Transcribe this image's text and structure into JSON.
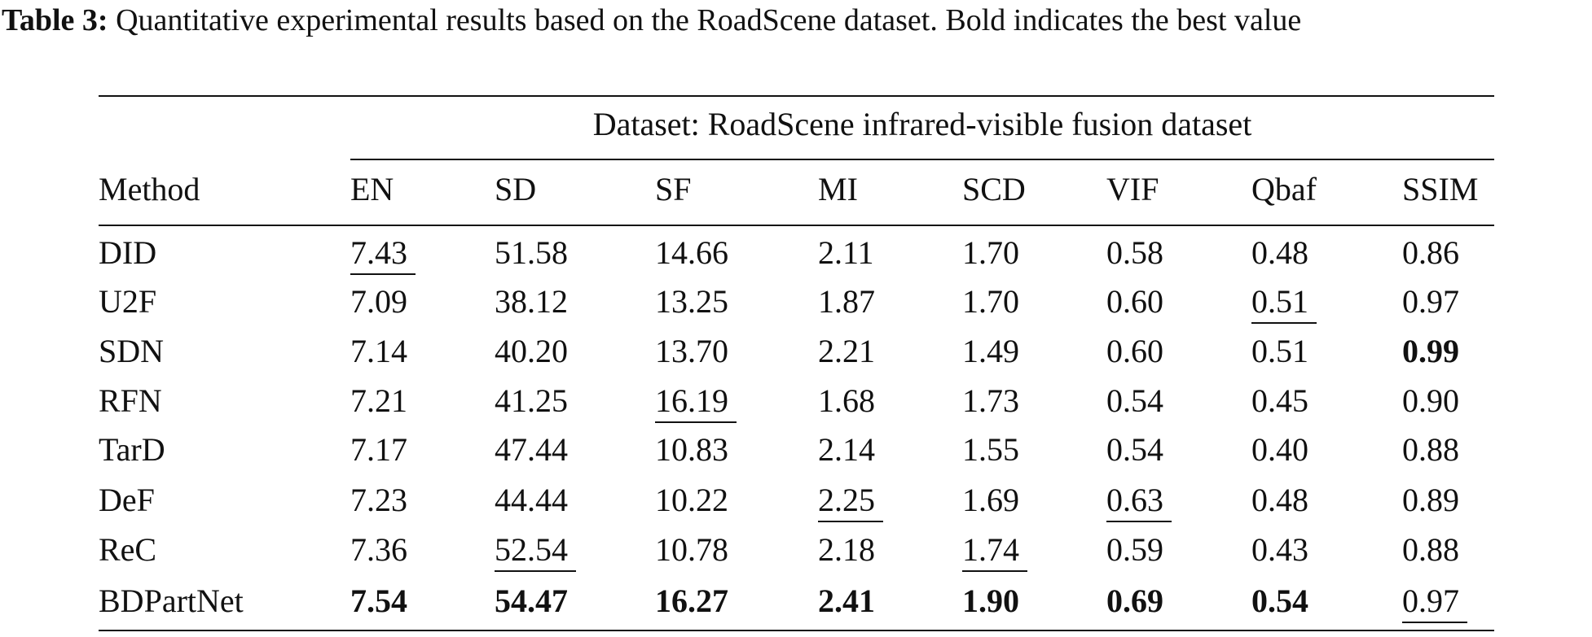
{
  "caption": {
    "label": "Table 3:",
    "text": "Quantitative experimental results based on the RoadScene dataset. Bold indicates the best value"
  },
  "table": {
    "group_header": "Dataset: RoadScene infrared-visible fusion dataset",
    "columns": [
      "Method",
      "EN",
      "SD",
      "SF",
      "MI",
      "SCD",
      "VIF",
      "Qbaf",
      "SSIM"
    ],
    "rows": [
      [
        "DID",
        "7.43",
        "51.58",
        "14.66",
        "2.11",
        "1.70",
        "0.58",
        "0.48",
        "0.86"
      ],
      [
        "U2F",
        "7.09",
        "38.12",
        "13.25",
        "1.87",
        "1.70",
        "0.60",
        "0.51",
        "0.97"
      ],
      [
        "SDN",
        "7.14",
        "40.20",
        "13.70",
        "2.21",
        "1.49",
        "0.60",
        "0.51",
        "0.99"
      ],
      [
        "RFN",
        "7.21",
        "41.25",
        "16.19",
        "1.68",
        "1.73",
        "0.54",
        "0.45",
        "0.90"
      ],
      [
        "TarD",
        "7.17",
        "47.44",
        "10.83",
        "2.14",
        "1.55",
        "0.54",
        "0.40",
        "0.88"
      ],
      [
        "DeF",
        "7.23",
        "44.44",
        "10.22",
        "2.25",
        "1.69",
        "0.63",
        "0.48",
        "0.89"
      ],
      [
        "ReC",
        "7.36",
        "52.54",
        "10.78",
        "2.18",
        "1.74",
        "0.59",
        "0.43",
        "0.88"
      ],
      [
        "BDPartNet",
        "7.54",
        "54.47",
        "16.27",
        "2.41",
        "1.90",
        "0.69",
        "0.54",
        "0.97"
      ]
    ],
    "bold_cells": [
      [
        2,
        8
      ],
      [
        7,
        1
      ],
      [
        7,
        2
      ],
      [
        7,
        3
      ],
      [
        7,
        4
      ],
      [
        7,
        5
      ],
      [
        7,
        6
      ],
      [
        7,
        7
      ]
    ],
    "underlined_cells": [
      [
        0,
        1
      ],
      [
        1,
        7
      ],
      [
        3,
        3
      ],
      [
        5,
        4
      ],
      [
        5,
        6
      ],
      [
        6,
        2
      ],
      [
        6,
        5
      ],
      [
        7,
        8
      ]
    ]
  }
}
